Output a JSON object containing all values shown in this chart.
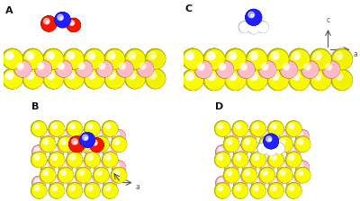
{
  "background": "#ffffff",
  "colors": {
    "S": "#d4d400",
    "Mo": "#e8a0a8",
    "N_blue": "#1a1aff",
    "O_red": "#dd1100",
    "H_white": "#d8d8d8",
    "axis_color": "#555555"
  },
  "label_fontsize": 8,
  "label_color": "#111111",
  "panel_A": {
    "xlim": [
      -0.3,
      5.5
    ],
    "ylim": [
      -1.0,
      2.2
    ]
  },
  "panel_B": {
    "xlim": [
      -0.3,
      3.8
    ],
    "ylim": [
      -0.3,
      3.2
    ]
  },
  "panel_C": {
    "xlim": [
      -0.3,
      5.5
    ],
    "ylim": [
      -1.0,
      2.2
    ]
  },
  "panel_D": {
    "xlim": [
      -0.3,
      3.8
    ],
    "ylim": [
      -0.3,
      3.2
    ]
  }
}
